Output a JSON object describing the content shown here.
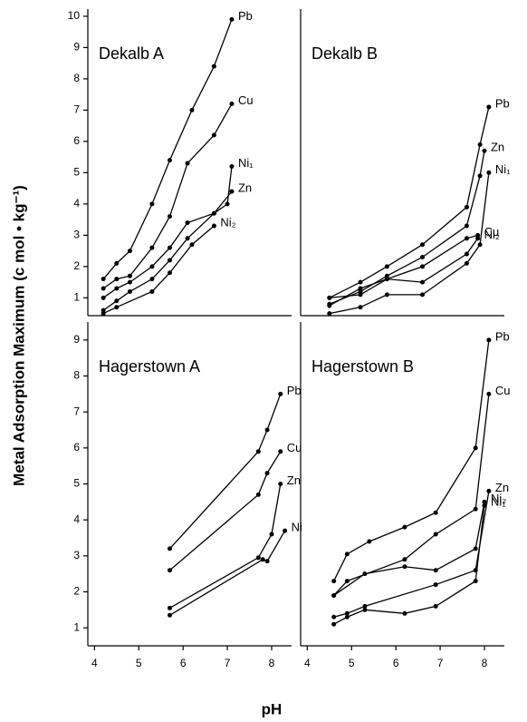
{
  "ylabel": "Metal Adsorption Maximum (c mol • kg⁻¹)",
  "xlabel": "pH",
  "chart_data": [
    {
      "type": "line",
      "title": "Dekalb A",
      "color": "#000000",
      "xlim": [
        3.85,
        8.45
      ],
      "ylim": [
        0.43,
        10.23
      ],
      "yticks": [
        1,
        2,
        3,
        4,
        5,
        6,
        7,
        8,
        9,
        10
      ],
      "series": [
        {
          "name": "Pb",
          "x": [
            4.2,
            4.5,
            4.8,
            5.3,
            5.7,
            6.2,
            6.7,
            7.1
          ],
          "values": [
            1.6,
            2.1,
            2.5,
            4.0,
            5.4,
            7.0,
            8.4,
            9.9
          ]
        },
        {
          "name": "Cu",
          "x": [
            4.2,
            4.5,
            4.8,
            5.3,
            5.7,
            6.1,
            6.7,
            7.1
          ],
          "values": [
            1.3,
            1.6,
            1.7,
            2.6,
            3.6,
            5.3,
            6.2,
            7.2
          ]
        },
        {
          "name": "Ni₁",
          "x": [
            4.2,
            4.5,
            4.8,
            5.3,
            5.7,
            6.1,
            6.7,
            7.0,
            7.1
          ],
          "values": [
            1.0,
            1.3,
            1.5,
            2.0,
            2.6,
            3.4,
            3.7,
            4.0,
            5.2
          ]
        },
        {
          "name": "Zn",
          "x": [
            4.2,
            4.5,
            4.8,
            5.3,
            5.7,
            6.1,
            6.7,
            7.1
          ],
          "values": [
            0.6,
            0.9,
            1.2,
            1.6,
            2.2,
            2.9,
            3.7,
            4.4
          ]
        },
        {
          "name": "Ni₂",
          "x": [
            4.2,
            4.5,
            5.3,
            5.7,
            6.2,
            6.7
          ],
          "values": [
            0.5,
            0.7,
            1.2,
            1.8,
            2.7,
            3.3
          ]
        }
      ]
    },
    {
      "type": "line",
      "title": "Dekalb B",
      "color": "#000000",
      "xlim": [
        3.85,
        8.45
      ],
      "ylim": [
        0.43,
        10.23
      ],
      "series": [
        {
          "name": "Pb",
          "x": [
            4.5,
            5.2,
            5.8,
            6.6,
            7.6,
            7.9,
            8.1
          ],
          "values": [
            1.0,
            1.5,
            2.0,
            2.7,
            3.9,
            5.9,
            7.1
          ]
        },
        {
          "name": "Zn",
          "x": [
            4.5,
            5.2,
            5.8,
            6.6,
            7.6,
            7.9,
            8.0
          ],
          "values": [
            0.8,
            1.2,
            1.7,
            2.3,
            3.3,
            4.9,
            5.7
          ]
        },
        {
          "name": "Cu",
          "x": [
            4.5,
            5.2,
            5.8,
            6.6,
            7.6,
            7.85
          ],
          "values": [
            0.75,
            1.3,
            1.6,
            2.0,
            2.9,
            3.0
          ]
        },
        {
          "name": "Ni₁",
          "x": [
            4.5,
            5.2,
            5.8,
            6.6,
            7.6,
            7.9,
            8.1
          ],
          "values": [
            0.5,
            0.7,
            1.1,
            1.1,
            2.1,
            2.7,
            5.0
          ]
        },
        {
          "name": "Ni₂",
          "x": [
            4.5,
            5.2,
            5.8,
            6.6,
            7.6,
            7.85
          ],
          "values": [
            1.0,
            1.1,
            1.6,
            1.5,
            2.4,
            2.9
          ]
        }
      ]
    },
    {
      "type": "line",
      "title": "Hagerstown A",
      "color": "#000000",
      "xlim": [
        3.85,
        8.45
      ],
      "ylim": [
        0.5,
        9.5
      ],
      "yticks": [
        1,
        2,
        3,
        4,
        5,
        6,
        7,
        8,
        9
      ],
      "xticks": [
        4,
        5,
        6,
        7,
        8
      ],
      "series": [
        {
          "name": "Pb",
          "x": [
            5.7,
            7.7,
            7.9,
            8.2
          ],
          "values": [
            3.2,
            5.9,
            6.5,
            7.5
          ]
        },
        {
          "name": "Cu",
          "x": [
            5.7,
            7.7,
            7.9,
            8.2
          ],
          "values": [
            2.6,
            4.7,
            5.3,
            5.9
          ]
        },
        {
          "name": "Zn",
          "x": [
            5.7,
            7.7,
            8.0,
            8.2
          ],
          "values": [
            1.55,
            2.95,
            3.6,
            5.0
          ]
        },
        {
          "name": "Ni",
          "x": [
            5.7,
            7.8,
            7.9,
            8.3
          ],
          "values": [
            1.35,
            2.9,
            2.85,
            3.7
          ]
        }
      ]
    },
    {
      "type": "line",
      "title": "Hagerstown B",
      "color": "#000000",
      "xlim": [
        3.85,
        8.45
      ],
      "ylim": [
        0.5,
        9.5
      ],
      "xticks": [
        4,
        5,
        6,
        7,
        8
      ],
      "series": [
        {
          "name": "Pb",
          "x": [
            4.6,
            4.9,
            5.4,
            6.2,
            6.9,
            7.8,
            8.1
          ],
          "values": [
            2.3,
            3.05,
            3.4,
            3.8,
            4.2,
            6.0,
            9.0
          ]
        },
        {
          "name": "Cu",
          "x": [
            4.6,
            4.9,
            6.2,
            6.9,
            7.8,
            8.1
          ],
          "values": [
            1.9,
            2.3,
            2.9,
            3.6,
            4.3,
            7.5
          ]
        },
        {
          "name": "Ni₂",
          "x": [
            4.6,
            5.3,
            6.2,
            6.9,
            7.8,
            8.0
          ],
          "values": [
            1.9,
            2.5,
            2.7,
            2.6,
            3.2,
            4.5
          ]
        },
        {
          "name": "Zn",
          "x": [
            4.6,
            4.9,
            5.3,
            6.9,
            7.8,
            8.1
          ],
          "values": [
            1.3,
            1.4,
            1.6,
            2.2,
            2.6,
            4.8
          ]
        },
        {
          "name": "Ni₁",
          "x": [
            4.6,
            4.9,
            5.3,
            6.2,
            6.9,
            7.8,
            8.0
          ],
          "values": [
            1.1,
            1.3,
            1.5,
            1.4,
            1.6,
            2.3,
            4.4
          ]
        }
      ]
    }
  ]
}
